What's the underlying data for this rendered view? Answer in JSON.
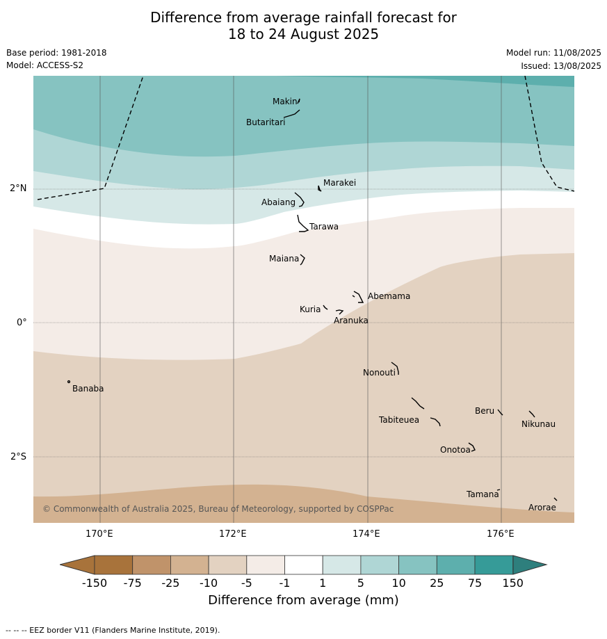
{
  "title_line1": "Difference from average rainfall forecast for",
  "title_line2": "18 to 24 August 2025",
  "base_period": "Base period: 1981-2018",
  "model": "Model: ACCESS-S2",
  "model_run": "Model run: 11/08/2025",
  "issued": "Issued: 13/08/2025",
  "copyright": "© Commonwealth of Australia 2025, Bureau of Meteorology, supported by COSPPac",
  "x_ticks": [
    "170°E",
    "172°E",
    "174°E",
    "176°E"
  ],
  "y_ticks": [
    "2°N",
    "0°",
    "2°S"
  ],
  "places": {
    "makin": "Makin",
    "butaritari": "Butaritari",
    "marakei": "Marakei",
    "abaiang": "Abaiang",
    "tarawa": "Tarawa",
    "maiana": "Maiana",
    "abemama": "Abemama",
    "kuria": "Kuria",
    "aranuka": "Aranuka",
    "banaba": "Banaba",
    "nonouti": "Nonouti",
    "tabiteuea": "Tabiteuea",
    "beru": "Beru",
    "nikunau": "Nikunau",
    "onotoa": "Onotoa",
    "tamana": "Tamana",
    "arorae": "Arorae"
  },
  "colorbar": {
    "title": "Difference from average (mm)",
    "ticks": [
      "-150",
      "-75",
      "-25",
      "-10",
      "-5",
      "-1",
      "1",
      "5",
      "10",
      "25",
      "75",
      "150"
    ],
    "colors": [
      "#a8733b",
      "#c0936a",
      "#d3b291",
      "#e3d2c1",
      "#f4ece7",
      "#ffffff",
      "#d6e8e7",
      "#afd6d5",
      "#86c3c1",
      "#5dafad",
      "#369b98"
    ],
    "under_color": "#a8733b",
    "over_color": "#2e7f7d"
  },
  "footer": "--  --  -- EEZ border V11 (Flanders Marine Institute, 2019)."
}
